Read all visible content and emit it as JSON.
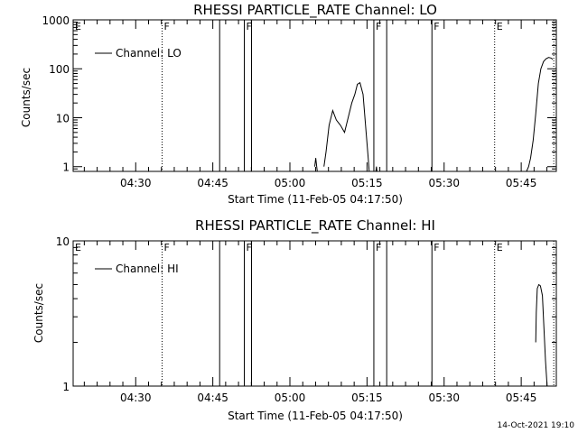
{
  "chart_data": [
    {
      "type": "line",
      "title": "RHESSI PARTICLE_RATE Channel: LO",
      "xlabel": "Start Time (11-Feb-05 04:17:50)",
      "ylabel": "Counts/sec",
      "yscale": "log",
      "ylim": [
        0.8,
        1000
      ],
      "xlim_min": [
        0,
        94
      ],
      "x_ticks_min": [
        12.17,
        27.17,
        42.17,
        57.17,
        72.17,
        87.17
      ],
      "x_tick_labels": [
        "04:30",
        "04:45",
        "05:00",
        "05:15",
        "05:30",
        "05:45"
      ],
      "y_ticks": [
        1,
        10,
        100,
        1000
      ],
      "y_tick_labels": [
        "1",
        "10",
        "100",
        "1000"
      ],
      "legend": {
        "placement": "top-left",
        "entries": [
          "Channel: LO"
        ]
      },
      "series": [
        {
          "name": "Channel: LO",
          "segments": [
            {
              "x": [
                47.0,
                47.2,
                47.5
              ],
              "y": [
                1.0,
                1.5,
                0.8
              ]
            },
            {
              "x": [
                48.8,
                49.2,
                49.8,
                50.5,
                51.2,
                52.0,
                52.8,
                53.5,
                54.2,
                54.8,
                55.3,
                55.8,
                56.4,
                57.0,
                57.4,
                57.6
              ],
              "y": [
                1.0,
                2.0,
                7.0,
                14.0,
                9.0,
                7.0,
                5.0,
                10.0,
                20.0,
                30.0,
                48.0,
                52.0,
                30.0,
                5.0,
                1.5,
                0.8
              ]
            },
            {
              "x": [
                58.9,
                59.0,
                59.1
              ],
              "y": [
                0.8,
                1.0,
                0.8
              ]
            },
            {
              "x": [
                88.2,
                88.6,
                89.0,
                89.5,
                90.0,
                90.5,
                91.0,
                91.5,
                92.0,
                92.5,
                93.0,
                93.3
              ],
              "y": [
                0.8,
                1.0,
                1.5,
                3.5,
                12.0,
                50.0,
                100.0,
                140.0,
                160.0,
                170.0,
                165.0,
                155.0
              ]
            }
          ]
        }
      ],
      "annotations": [
        {
          "x_min": 17.3,
          "style": "dotted",
          "label": "F"
        },
        {
          "x_min": 28.5,
          "style": "solid",
          "label": ""
        },
        {
          "x_min": 33.3,
          "style": "solid",
          "label": "F"
        },
        {
          "x_min": 34.7,
          "style": "solid",
          "label": ""
        },
        {
          "x_min": 58.5,
          "style": "solid",
          "label": "F"
        },
        {
          "x_min": 61.0,
          "style": "solid",
          "label": ""
        },
        {
          "x_min": 69.8,
          "style": "solid",
          "label": "F"
        },
        {
          "x_min": 82.0,
          "style": "dotted",
          "label": "E"
        },
        {
          "x_min": 93.5,
          "style": "dotted",
          "label": ""
        }
      ],
      "edge_markers": [
        {
          "x_min": 0,
          "label": "E"
        }
      ]
    },
    {
      "type": "line",
      "title": "RHESSI PARTICLE_RATE Channel: HI",
      "xlabel": "Start Time (11-Feb-05 04:17:50)",
      "ylabel": "Counts/sec",
      "yscale": "log",
      "ylim": [
        1,
        10
      ],
      "xlim_min": [
        0,
        94
      ],
      "x_ticks_min": [
        12.17,
        27.17,
        42.17,
        57.17,
        72.17,
        87.17
      ],
      "x_tick_labels": [
        "04:30",
        "04:45",
        "05:00",
        "05:15",
        "05:30",
        "05:45"
      ],
      "y_ticks": [
        1,
        10
      ],
      "y_tick_labels": [
        "1",
        "10"
      ],
      "legend": {
        "placement": "top-left",
        "entries": [
          "Channel: HI"
        ]
      },
      "series": [
        {
          "name": "Channel: HI",
          "segments": [
            {
              "x": [
                90.0,
                90.1,
                90.3,
                90.6,
                90.9,
                91.3,
                91.6,
                91.9,
                92.2
              ],
              "y": [
                2.0,
                3.2,
                4.7,
                5.0,
                4.9,
                4.2,
                2.5,
                1.5,
                1.0
              ]
            }
          ]
        }
      ],
      "annotations": [
        {
          "x_min": 17.3,
          "style": "dotted",
          "label": "F"
        },
        {
          "x_min": 28.5,
          "style": "solid",
          "label": ""
        },
        {
          "x_min": 33.3,
          "style": "solid",
          "label": "F"
        },
        {
          "x_min": 34.7,
          "style": "solid",
          "label": ""
        },
        {
          "x_min": 58.5,
          "style": "solid",
          "label": "F"
        },
        {
          "x_min": 61.0,
          "style": "solid",
          "label": ""
        },
        {
          "x_min": 69.8,
          "style": "solid",
          "label": "F"
        },
        {
          "x_min": 82.0,
          "style": "dotted",
          "label": "E"
        },
        {
          "x_min": 93.5,
          "style": "dotted",
          "label": ""
        }
      ],
      "edge_markers": [
        {
          "x_min": 0,
          "label": "E"
        }
      ]
    }
  ],
  "footer": {
    "timestamp": "14-Oct-2021 19:10"
  }
}
